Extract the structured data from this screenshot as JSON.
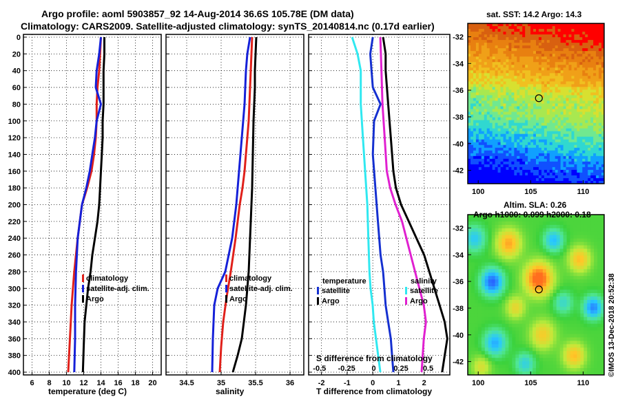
{
  "header": {
    "line1": "Argo profile: aoml 5903857_92 14-Aug-2014 36.6S 105.78E (DM data)",
    "line2": "Climatology: CARS2009. Satellite-adjusted climatology: synTS_20140814.nc (0.17d earlier)"
  },
  "colors": {
    "climatology": "#e0201a",
    "satellite": "#1520d8",
    "argo": "#000000",
    "t_sat": "#1530d0",
    "s_sat": "#30e8f0",
    "s_argo": "#e020d0"
  },
  "chart_data": [
    {
      "type": "line",
      "id": "temperature",
      "xlabel": "temperature (deg C)",
      "ylabel": "",
      "xlim": [
        5,
        21
      ],
      "ylim": [
        400,
        0
      ],
      "xticks": [
        "6",
        "8",
        "10",
        "12",
        "14",
        "16",
        "18",
        "20"
      ],
      "yticks": [
        "0",
        "20",
        "40",
        "60",
        "80",
        "100",
        "120",
        "140",
        "160",
        "180",
        "200",
        "220",
        "240",
        "260",
        "280",
        "300",
        "320",
        "340",
        "360",
        "380",
        "400"
      ],
      "legend": [
        "climatology",
        "satellite-adj. clim.",
        "Argo"
      ],
      "series": [
        {
          "name": "climatology",
          "x": [
            14.0,
            13.9,
            13.8,
            13.6,
            13.5,
            13.5,
            13.4,
            13.2,
            12.9,
            12.4,
            11.8,
            11.3,
            10.9,
            10.6,
            10.4,
            10.2
          ],
          "y": [
            0,
            20,
            40,
            60,
            80,
            100,
            120,
            140,
            160,
            180,
            200,
            240,
            280,
            320,
            360,
            400
          ]
        },
        {
          "name": "satellite-adj. clim.",
          "x": [
            14.0,
            13.8,
            13.5,
            13.4,
            14.0,
            13.5,
            13.3,
            13.0,
            12.7,
            12.3,
            11.8,
            11.3,
            11.1,
            11.0,
            11.0,
            10.9
          ],
          "y": [
            0,
            20,
            40,
            60,
            80,
            100,
            120,
            140,
            160,
            180,
            200,
            240,
            280,
            320,
            360,
            400
          ]
        },
        {
          "name": "Argo",
          "x": [
            14.4,
            14.4,
            14.3,
            14.3,
            14.3,
            14.2,
            14.2,
            14.1,
            14.0,
            13.9,
            13.8,
            13.6,
            13.3,
            13.0,
            12.8,
            12.5,
            12.3,
            12.1,
            12.0,
            11.9
          ],
          "y": [
            0,
            20,
            40,
            60,
            80,
            100,
            120,
            140,
            160,
            180,
            200,
            220,
            240,
            260,
            280,
            300,
            320,
            340,
            370,
            400
          ]
        }
      ]
    },
    {
      "type": "line",
      "id": "salinity",
      "xlabel": "salinity",
      "ylabel": "",
      "xlim": [
        34.2,
        36.2
      ],
      "ylim": [
        400,
        0
      ],
      "xticks": [
        "34.5",
        "35",
        "35.5",
        "36"
      ],
      "legend": [
        "climatology",
        "satellite-adj. clim.",
        "Argo"
      ],
      "series": [
        {
          "name": "climatology",
          "x": [
            35.45,
            35.44,
            35.43,
            35.42,
            35.41,
            35.4,
            35.38,
            35.36,
            35.34,
            35.31,
            35.27,
            35.21,
            35.14,
            35.08,
            35.03,
            35.0,
            34.98
          ],
          "y": [
            0,
            20,
            40,
            60,
            80,
            100,
            120,
            140,
            160,
            180,
            200,
            240,
            280,
            310,
            340,
            370,
            400
          ]
        },
        {
          "name": "satellite-adj. clim.",
          "x": [
            35.42,
            35.38,
            35.36,
            35.35,
            35.34,
            35.32,
            35.3,
            35.28,
            35.26,
            35.24,
            35.22,
            35.16,
            35.06,
            34.95,
            34.9,
            34.88,
            34.87
          ],
          "y": [
            0,
            20,
            40,
            60,
            80,
            100,
            120,
            140,
            160,
            180,
            200,
            240,
            280,
            300,
            320,
            360,
            400
          ]
        },
        {
          "name": "Argo",
          "x": [
            35.51,
            35.5,
            35.49,
            35.49,
            35.48,
            35.47,
            35.46,
            35.45,
            35.44,
            35.43,
            35.42,
            35.4,
            35.38,
            35.36,
            35.33,
            35.3,
            35.24,
            35.17
          ],
          "y": [
            0,
            20,
            40,
            60,
            80,
            100,
            140,
            180,
            200,
            220,
            240,
            280,
            300,
            320,
            340,
            360,
            380,
            400
          ]
        }
      ]
    },
    {
      "type": "line",
      "id": "differences",
      "xlabel": "T difference from climatology",
      "xlabel2": "S difference from climatology",
      "xlim": [
        -2.5,
        3
      ],
      "xlim2": [
        -0.6,
        0.7
      ],
      "ylim": [
        400,
        0
      ],
      "xticks": [
        "-2",
        "-1",
        "0",
        "1",
        "2"
      ],
      "xticks2": [
        "-0.5",
        "-0.25",
        "0",
        "0.25",
        "0.5"
      ],
      "legend_left_title": "temperature",
      "legend_right_title": "salinity",
      "legend": [
        "satellite",
        "Argo"
      ],
      "series": [
        {
          "name": "satellite (temperature)",
          "x": [
            0.0,
            -0.1,
            -0.05,
            0.0,
            0.3,
            0.05,
            0.0,
            0.1,
            0.2,
            0.3,
            0.4,
            0.45,
            0.5,
            0.6,
            0.7,
            0.75,
            0.8
          ],
          "y": [
            0,
            20,
            40,
            60,
            80,
            100,
            140,
            180,
            220,
            260,
            280,
            300,
            320,
            340,
            360,
            380,
            400
          ]
        },
        {
          "name": "Argo (temperature)",
          "x": [
            0.4,
            0.5,
            0.5,
            0.6,
            0.7,
            0.8,
            0.9,
            1.1,
            1.4,
            1.7,
            2.0,
            2.2,
            2.4,
            2.6,
            2.8,
            2.9,
            2.7
          ],
          "y": [
            0,
            20,
            40,
            80,
            120,
            160,
            180,
            200,
            220,
            240,
            260,
            280,
            300,
            320,
            340,
            360,
            400
          ]
        },
        {
          "name": "satellite (salinity)",
          "x": [
            -0.2,
            -0.15,
            -0.12,
            -0.12,
            -0.1,
            -0.08,
            -0.06,
            -0.05,
            -0.04,
            -0.03,
            -0.01,
            0.0,
            0.02,
            0.04,
            0.05,
            0.06
          ],
          "y": [
            0,
            20,
            40,
            80,
            120,
            160,
            200,
            240,
            280,
            300,
            320,
            340,
            360,
            380,
            390,
            400
          ]
        },
        {
          "name": "Argo (salinity)",
          "x": [
            0.06,
            0.07,
            0.08,
            0.1,
            0.12,
            0.15,
            0.2,
            0.26,
            0.3,
            0.34,
            0.38,
            0.42,
            0.46,
            0.48,
            0.46,
            0.44
          ],
          "y": [
            0,
            40,
            80,
            120,
            160,
            180,
            200,
            220,
            240,
            260,
            280,
            300,
            320,
            340,
            360,
            400
          ]
        }
      ]
    },
    {
      "type": "heatmap",
      "id": "sst-map",
      "title": "sat. SST: 14.2 Argo: 14.3",
      "xlim": [
        99,
        112
      ],
      "ylim": [
        -43,
        -31
      ],
      "xticks": [
        "100",
        "105",
        "110"
      ],
      "yticks": [
        "-32",
        "-34",
        "-36",
        "-38",
        "-40",
        "-42"
      ],
      "marker": {
        "lon": 105.78,
        "lat": -36.6
      }
    },
    {
      "type": "heatmap",
      "id": "sla-map",
      "title": "Altim. SLA: 0.26",
      "subtitle": "Argo h1000: 0.099 h2000: 0.18",
      "xlim": [
        99,
        112
      ],
      "ylim": [
        -43,
        -31
      ],
      "xticks": [
        "100",
        "105",
        "110"
      ],
      "yticks": [
        "-32",
        "-34",
        "-36",
        "-38",
        "-40",
        "-42"
      ],
      "marker": {
        "lon": 105.78,
        "lat": -36.6
      }
    }
  ],
  "credit": "©IMOS 13-Dec-2018 20:52:38"
}
